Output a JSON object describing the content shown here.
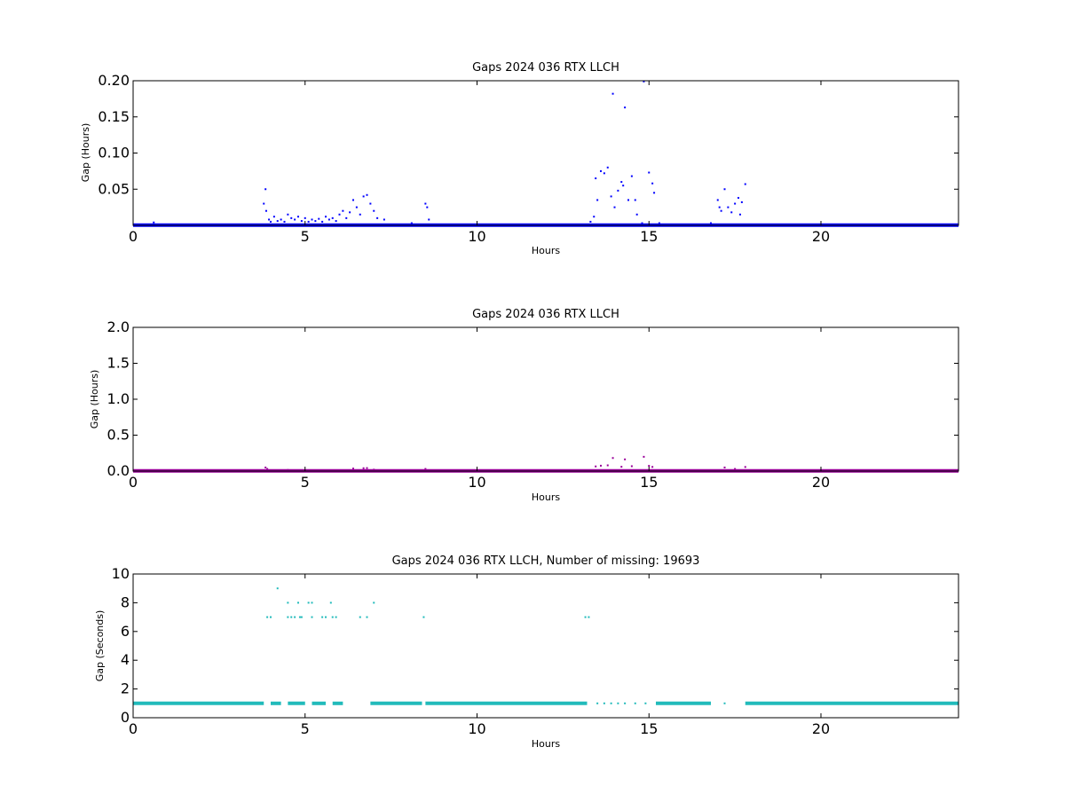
{
  "panels": [
    {
      "title": "Gaps 2024 036 RTX  LLCH",
      "xlabel": "Hours",
      "ylabel": "Gap (Hours)",
      "xlim": [
        0,
        24
      ],
      "ylim": [
        0,
        0.2
      ],
      "xticks": [
        0,
        5,
        10,
        15,
        20
      ],
      "yticks": [
        0.05,
        0.1,
        0.15,
        0.2
      ],
      "ytick_labels": [
        "0.05",
        "0.10",
        "0.15",
        "0.20"
      ],
      "color": "#0000ff",
      "chart_data": {
        "type": "scatter",
        "baseline_value": 0.0003,
        "baseline_x_ranges": [
          [
            0,
            24
          ]
        ],
        "points": [
          [
            0.6,
            0.004
          ],
          [
            3.8,
            0.03
          ],
          [
            3.85,
            0.05
          ],
          [
            3.87,
            0.02
          ],
          [
            3.95,
            0.008
          ],
          [
            4.0,
            0.005
          ],
          [
            4.1,
            0.012
          ],
          [
            4.2,
            0.006
          ],
          [
            4.3,
            0.008
          ],
          [
            4.4,
            0.005
          ],
          [
            4.5,
            0.015
          ],
          [
            4.6,
            0.01
          ],
          [
            4.7,
            0.008
          ],
          [
            4.8,
            0.012
          ],
          [
            4.9,
            0.006
          ],
          [
            5.0,
            0.01
          ],
          [
            5.1,
            0.005
          ],
          [
            5.2,
            0.008
          ],
          [
            5.3,
            0.006
          ],
          [
            5.4,
            0.009
          ],
          [
            5.5,
            0.005
          ],
          [
            5.6,
            0.012
          ],
          [
            5.7,
            0.008
          ],
          [
            5.8,
            0.01
          ],
          [
            5.9,
            0.006
          ],
          [
            6.0,
            0.015
          ],
          [
            6.1,
            0.02
          ],
          [
            6.2,
            0.01
          ],
          [
            6.3,
            0.018
          ],
          [
            6.4,
            0.035
          ],
          [
            6.5,
            0.025
          ],
          [
            6.6,
            0.015
          ],
          [
            6.7,
            0.04
          ],
          [
            6.8,
            0.042
          ],
          [
            6.9,
            0.03
          ],
          [
            7.0,
            0.02
          ],
          [
            7.1,
            0.01
          ],
          [
            7.3,
            0.008
          ],
          [
            8.1,
            0.003
          ],
          [
            8.5,
            0.03
          ],
          [
            8.55,
            0.025
          ],
          [
            8.6,
            0.008
          ],
          [
            13.3,
            0.005
          ],
          [
            13.4,
            0.012
          ],
          [
            13.45,
            0.065
          ],
          [
            13.5,
            0.035
          ],
          [
            13.6,
            0.075
          ],
          [
            13.7,
            0.072
          ],
          [
            13.8,
            0.08
          ],
          [
            13.9,
            0.04
          ],
          [
            13.95,
            0.182
          ],
          [
            14.0,
            0.025
          ],
          [
            14.1,
            0.048
          ],
          [
            14.2,
            0.06
          ],
          [
            14.25,
            0.055
          ],
          [
            14.3,
            0.163
          ],
          [
            14.4,
            0.035
          ],
          [
            14.5,
            0.068
          ],
          [
            14.6,
            0.035
          ],
          [
            14.65,
            0.015
          ],
          [
            14.8,
            0.003
          ],
          [
            14.85,
            0.199
          ],
          [
            15.0,
            0.073
          ],
          [
            15.1,
            0.058
          ],
          [
            15.15,
            0.045
          ],
          [
            15.3,
            0.003
          ],
          [
            16.8,
            0.003
          ],
          [
            17.0,
            0.035
          ],
          [
            17.05,
            0.025
          ],
          [
            17.1,
            0.02
          ],
          [
            17.2,
            0.05
          ],
          [
            17.3,
            0.025
          ],
          [
            17.4,
            0.018
          ],
          [
            17.5,
            0.03
          ],
          [
            17.6,
            0.038
          ],
          [
            17.65,
            0.015
          ],
          [
            17.7,
            0.032
          ],
          [
            17.8,
            0.057
          ]
        ]
      }
    },
    {
      "title": "Gaps 2024 036 RTX  LLCH",
      "xlabel": "Hours",
      "ylabel": "Gap (Hours)",
      "xlim": [
        0,
        24
      ],
      "ylim": [
        0,
        2
      ],
      "xticks": [
        0,
        5,
        10,
        15,
        20
      ],
      "yticks": [
        0,
        0.5,
        1.0,
        1.5,
        2.0
      ],
      "ytick_labels": [
        "0.0",
        "0.5",
        "1.0",
        "1.5",
        "2.0"
      ],
      "color": "#990099",
      "chart_data": {
        "type": "scatter",
        "baseline_value": 0.003,
        "baseline_x_ranges": [
          [
            0,
            24
          ]
        ],
        "points": [
          [
            3.85,
            0.05
          ],
          [
            3.9,
            0.03
          ],
          [
            4.5,
            0.015
          ],
          [
            5.5,
            0.01
          ],
          [
            6.4,
            0.035
          ],
          [
            6.7,
            0.04
          ],
          [
            6.8,
            0.042
          ],
          [
            7.0,
            0.02
          ],
          [
            8.5,
            0.03
          ],
          [
            13.45,
            0.065
          ],
          [
            13.6,
            0.075
          ],
          [
            13.8,
            0.08
          ],
          [
            13.95,
            0.182
          ],
          [
            14.2,
            0.06
          ],
          [
            14.3,
            0.163
          ],
          [
            14.5,
            0.068
          ],
          [
            14.85,
            0.199
          ],
          [
            15.0,
            0.073
          ],
          [
            15.1,
            0.058
          ],
          [
            17.2,
            0.05
          ],
          [
            17.5,
            0.03
          ],
          [
            17.8,
            0.057
          ]
        ]
      }
    },
    {
      "title": "Gaps 2024 036 RTX  LLCH, Number of missing: 19693",
      "xlabel": "Hours",
      "ylabel": "Gap (Seconds)",
      "xlim": [
        0,
        24
      ],
      "ylim": [
        0,
        10
      ],
      "xticks": [
        0,
        5,
        10,
        15,
        20
      ],
      "yticks": [
        0,
        2,
        4,
        6,
        8,
        10
      ],
      "ytick_labels": [
        "0",
        "2",
        "4",
        "6",
        "8",
        "10"
      ],
      "color": "#22bbbb",
      "chart_data": {
        "type": "scatter",
        "baseline_value": 1,
        "baseline_x_ranges": [
          [
            0,
            3.8
          ],
          [
            4.0,
            4.3
          ],
          [
            4.5,
            5.0
          ],
          [
            5.2,
            5.6
          ],
          [
            5.8,
            6.1
          ],
          [
            6.9,
            8.4
          ],
          [
            8.5,
            13.2
          ],
          [
            15.2,
            16.8
          ],
          [
            17.8,
            24
          ]
        ],
        "points": [
          [
            3.9,
            7
          ],
          [
            4.0,
            7
          ],
          [
            4.2,
            9
          ],
          [
            4.5,
            7
          ],
          [
            4.5,
            8
          ],
          [
            4.6,
            7
          ],
          [
            4.7,
            7
          ],
          [
            4.8,
            8
          ],
          [
            4.85,
            7
          ],
          [
            4.9,
            7
          ],
          [
            5.1,
            8
          ],
          [
            5.2,
            8
          ],
          [
            5.2,
            7
          ],
          [
            5.5,
            7
          ],
          [
            5.6,
            7
          ],
          [
            5.75,
            8
          ],
          [
            5.8,
            7
          ],
          [
            5.9,
            7
          ],
          [
            6.6,
            7
          ],
          [
            6.8,
            7
          ],
          [
            7.0,
            8
          ],
          [
            8.45,
            7
          ],
          [
            13.15,
            7
          ],
          [
            13.25,
            7
          ],
          [
            13.5,
            1
          ],
          [
            13.7,
            1
          ],
          [
            13.9,
            1
          ],
          [
            14.1,
            1
          ],
          [
            14.3,
            1
          ],
          [
            14.6,
            1
          ],
          [
            14.9,
            1
          ],
          [
            17.2,
            1
          ]
        ]
      }
    }
  ]
}
